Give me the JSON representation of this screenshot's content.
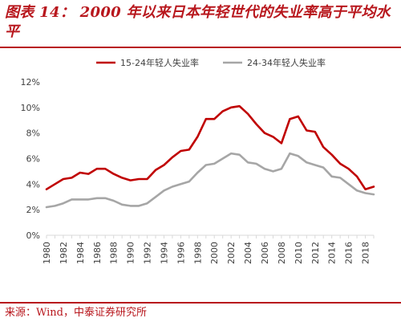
{
  "header": {
    "title": "图表 14： 2000 年以来日本年轻世代的失业率高于平均水平"
  },
  "footer": {
    "source": "来源：Wind，中泰证券研究所"
  },
  "colors": {
    "accent": "#b8171d",
    "series1": "#c00000",
    "series2": "#a6a6a6",
    "axis": "#d9d9d9"
  },
  "chart_data": {
    "type": "line",
    "title": "",
    "xlabel": "",
    "ylabel": "",
    "ylim": [
      0,
      12
    ],
    "yticks": [
      "0%",
      "2%",
      "4%",
      "6%",
      "8%",
      "10%",
      "12%"
    ],
    "xticks": [
      "1980",
      "1982",
      "1984",
      "1986",
      "1988",
      "1990",
      "1992",
      "1994",
      "1996",
      "1998",
      "2000",
      "2002",
      "2004",
      "2006",
      "2008",
      "2010",
      "2012",
      "2014",
      "2016",
      "2018"
    ],
    "grid": false,
    "legend": "top",
    "x": [
      1980,
      1981,
      1982,
      1983,
      1984,
      1985,
      1986,
      1987,
      1988,
      1989,
      1990,
      1991,
      1992,
      1993,
      1994,
      1995,
      1996,
      1997,
      1998,
      1999,
      2000,
      2001,
      2002,
      2003,
      2004,
      2005,
      2006,
      2007,
      2008,
      2009,
      2010,
      2011,
      2012,
      2013,
      2014,
      2015,
      2016,
      2017,
      2018,
      2019
    ],
    "series": [
      {
        "name": "15-24年轻人失业率",
        "color": "#c00000",
        "values": [
          3.6,
          4.0,
          4.4,
          4.5,
          4.9,
          4.8,
          5.2,
          5.2,
          4.8,
          4.5,
          4.3,
          4.4,
          4.4,
          5.1,
          5.5,
          6.1,
          6.6,
          6.7,
          7.7,
          9.1,
          9.1,
          9.7,
          10.0,
          10.1,
          9.5,
          8.7,
          8.0,
          7.7,
          7.2,
          9.1,
          9.3,
          8.2,
          8.1,
          6.9,
          6.3,
          5.6,
          5.2,
          4.6,
          3.6,
          3.8
        ]
      },
      {
        "name": "24-34年轻人失业率",
        "color": "#a6a6a6",
        "values": [
          2.2,
          2.3,
          2.5,
          2.8,
          2.8,
          2.8,
          2.9,
          2.9,
          2.7,
          2.4,
          2.3,
          2.3,
          2.5,
          3.0,
          3.5,
          3.8,
          4.0,
          4.2,
          4.9,
          5.5,
          5.6,
          6.0,
          6.4,
          6.3,
          5.7,
          5.6,
          5.2,
          5.0,
          5.2,
          6.4,
          6.2,
          5.7,
          5.5,
          5.3,
          4.6,
          4.5,
          4.0,
          3.5,
          3.3,
          3.2
        ]
      }
    ]
  }
}
